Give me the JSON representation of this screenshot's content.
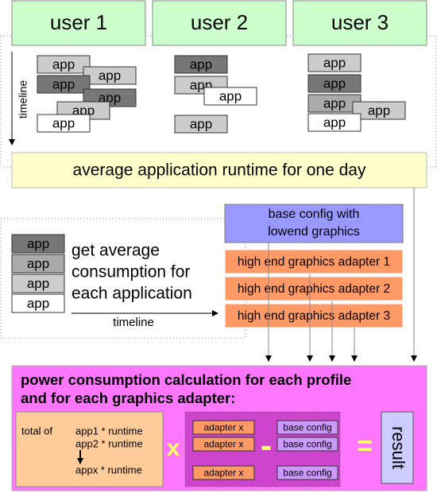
{
  "users": [
    "user 1",
    "user 2",
    "user 3"
  ],
  "user_apps": [
    [
      "app",
      "app",
      "app",
      "app",
      "app",
      "app"
    ],
    [
      "app",
      "app",
      "app",
      "app"
    ],
    [
      "app",
      "app",
      "app",
      "app",
      "app"
    ]
  ],
  "timeline_labels": [
    "timeline",
    "timeline"
  ],
  "runtime_box": "average application runtime for one day",
  "consumption_apps": [
    "app",
    "app",
    "app",
    "app"
  ],
  "consumption_text": [
    "get average",
    "consumption for",
    "each application"
  ],
  "base_config": [
    "base config with",
    "lowend graphics"
  ],
  "adapters": [
    "high end graphics adapter 1",
    "high end graphics adapter 2",
    "high end graphics adapter 3"
  ],
  "calculation": {
    "title": [
      "power consumption calculation for each profile",
      "and for each graphics adapter:"
    ],
    "total_of": "total of",
    "terms": [
      "app1 * runtime",
      "app2 * runtime",
      "appx * runtime"
    ],
    "times": "x",
    "minus": "-",
    "equals": "=",
    "adapter_labels": [
      "adapter x",
      "adapter x",
      "adapter x"
    ],
    "base_labels": [
      "base config",
      "base config",
      "base config"
    ],
    "result": "result"
  }
}
